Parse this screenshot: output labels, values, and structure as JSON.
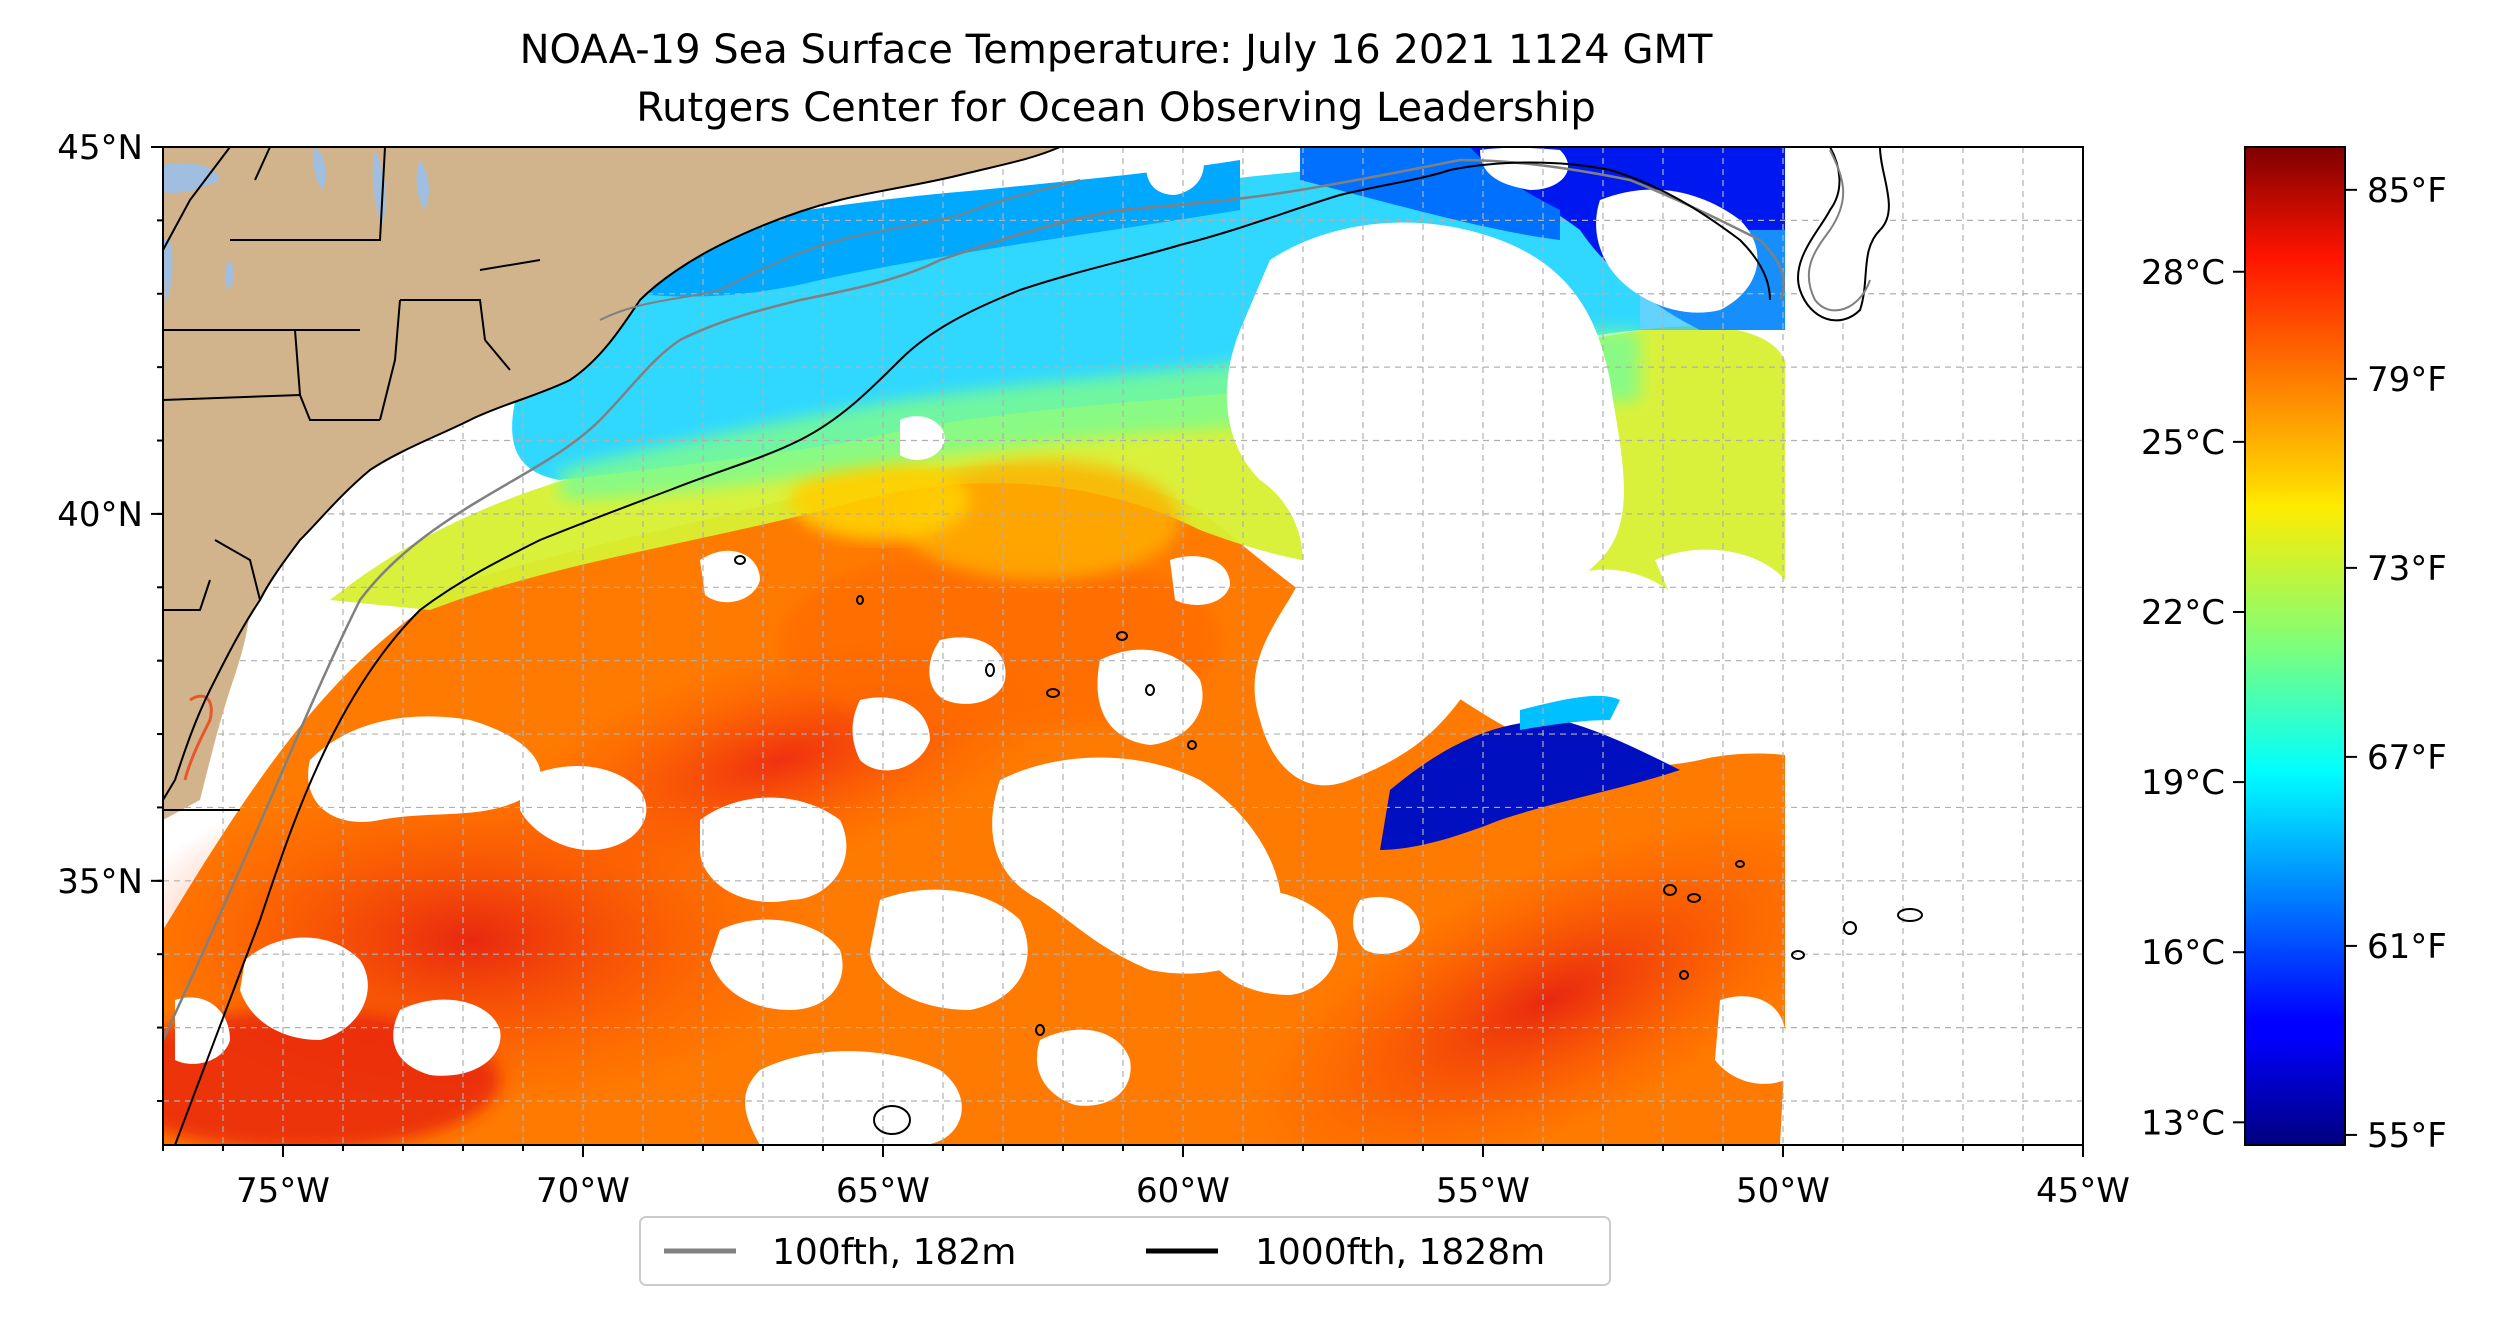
{
  "title": {
    "line1": "NOAA-19 Sea Surface Temperature: July 16 2021 1124 GMT",
    "line2": "Rutgers Center for Ocean Observing Leadership"
  },
  "map": {
    "lon_range": [
      -77,
      -45
    ],
    "lat_range": [
      31.4,
      45
    ],
    "x_ticks": [
      {
        "lon": -75,
        "label": "75°W"
      },
      {
        "lon": -70,
        "label": "70°W"
      },
      {
        "lon": -65,
        "label": "65°W"
      },
      {
        "lon": -60,
        "label": "60°W"
      },
      {
        "lon": -55,
        "label": "55°W"
      },
      {
        "lon": -50,
        "label": "50°W"
      },
      {
        "lon": -45,
        "label": "45°W"
      }
    ],
    "y_ticks": [
      {
        "lat": 45,
        "label": "45°N"
      },
      {
        "lat": 40,
        "label": "40°N"
      },
      {
        "lat": 35,
        "label": "35°N"
      }
    ],
    "minor_grid_step_deg": 1,
    "swath_east_edge_lon": -50,
    "colors": {
      "land": "#d2b48c",
      "lake": "#a0bfe0",
      "isobath_100": "#808080",
      "isobath_1000": "#000000",
      "grid": "#b0b0b0"
    }
  },
  "legend": {
    "items": [
      {
        "label": "100fth, 182m",
        "color": "#808080"
      },
      {
        "label": "1000fth, 1828m",
        "color": "#000000"
      }
    ]
  },
  "colorbar": {
    "colormap": "jet",
    "range_c": [
      12.6,
      30.2
    ],
    "celsius_ticks": [
      {
        "value": 13,
        "label": "13°C"
      },
      {
        "value": 16,
        "label": "16°C"
      },
      {
        "value": 19,
        "label": "19°C"
      },
      {
        "value": 22,
        "label": "22°C"
      },
      {
        "value": 25,
        "label": "25°C"
      },
      {
        "value": 28,
        "label": "28°C"
      }
    ],
    "fahrenheit_ticks": [
      {
        "value": 55,
        "label": "55°F"
      },
      {
        "value": 61,
        "label": "61°F"
      },
      {
        "value": 67,
        "label": "67°F"
      },
      {
        "value": 73,
        "label": "73°F"
      },
      {
        "value": 79,
        "label": "79°F"
      },
      {
        "value": 85,
        "label": "85°F"
      }
    ]
  }
}
